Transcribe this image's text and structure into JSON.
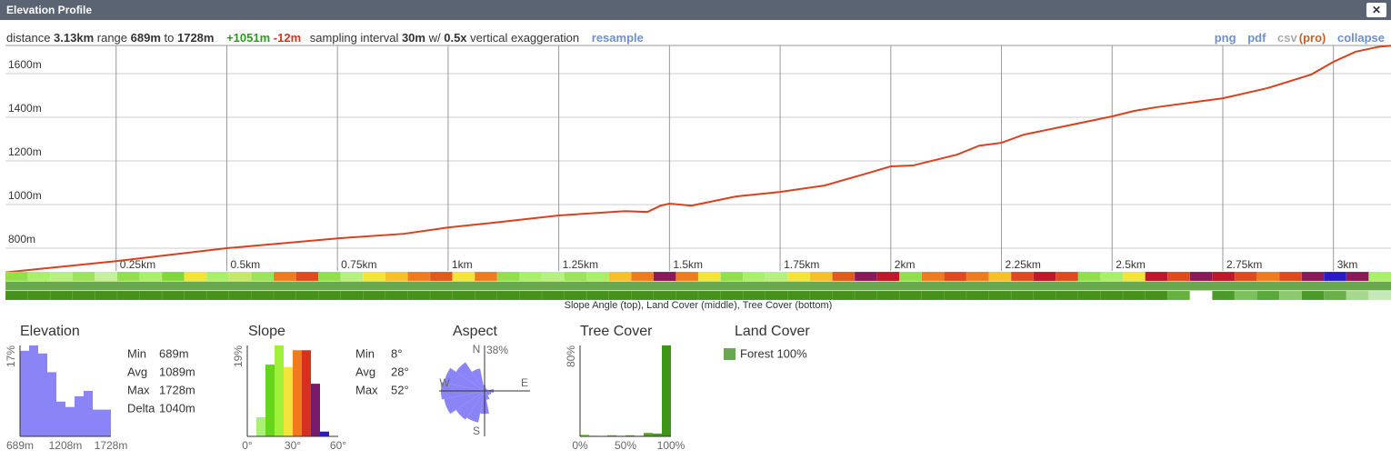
{
  "header": {
    "title": "Elevation Profile",
    "close": "✕"
  },
  "toolbar": {
    "distance_label": "distance",
    "distance": "3.13km",
    "range_label": "range",
    "range_min": "689m",
    "to": "to",
    "range_max": "1728m",
    "gain": "+1051m",
    "loss": "-12m",
    "interval_label": "sampling interval",
    "interval": "30m",
    "with": "w/",
    "exaggeration": "0.5x",
    "exaggeration_label": "vertical exaggeration",
    "resample": "resample",
    "links": [
      "png",
      "pdf",
      "csv",
      "(pro)",
      "collapse"
    ]
  },
  "chart_data": [
    {
      "type": "line",
      "color": "#d9411e",
      "grid": true,
      "x": [
        0,
        0.25,
        0.5,
        0.75,
        0.9,
        1.0,
        1.1,
        1.25,
        1.4,
        1.45,
        1.48,
        1.5,
        1.55,
        1.65,
        1.75,
        1.85,
        1.95,
        2.0,
        2.05,
        2.15,
        2.2,
        2.25,
        2.3,
        2.4,
        2.5,
        2.55,
        2.6,
        2.75,
        2.85,
        2.95,
        3.0,
        3.05,
        3.1,
        3.13
      ],
      "values": [
        689,
        741,
        800,
        845,
        866,
        895,
        916,
        950,
        970,
        966,
        995,
        1004,
        995,
        1037,
        1058,
        1087,
        1145,
        1175,
        1179,
        1229,
        1270,
        1283,
        1320,
        1362,
        1404,
        1429,
        1446,
        1487,
        1533,
        1596,
        1654,
        1700,
        1722,
        1728
      ],
      "xlim": [
        0,
        3.13
      ],
      "ylim": [
        696,
        1729
      ],
      "xticks": [
        {
          "value": 0.25,
          "label": "0.25km"
        },
        {
          "value": 0.5,
          "label": "0.5km"
        },
        {
          "value": 0.75,
          "label": "0.75km"
        },
        {
          "value": 1,
          "label": "1km"
        },
        {
          "value": 1.25,
          "label": "1.25km"
        },
        {
          "value": 1.5,
          "label": "1.5km"
        },
        {
          "value": 1.75,
          "label": "1.75km"
        },
        {
          "value": 2,
          "label": "2km"
        },
        {
          "value": 2.25,
          "label": "2.25km"
        },
        {
          "value": 2.5,
          "label": "2.5km"
        },
        {
          "value": 2.75,
          "label": "2.75km"
        },
        {
          "value": 3,
          "label": "3km"
        }
      ],
      "yticks": [
        {
          "value": 800,
          "label": "800m"
        },
        {
          "value": 1000,
          "label": "1000m"
        },
        {
          "value": 1200,
          "label": "1200m"
        },
        {
          "value": 1400,
          "label": "1400m"
        },
        {
          "value": 1600,
          "label": "1600m"
        }
      ],
      "strips": [
        {
          "colors": [
            "#8fe04a",
            "#a8ef6a",
            "#b5f080",
            "#9be35a",
            "#c6f09a",
            "#8fe04a",
            "#a8ef6a",
            "#7fd83a",
            "#f2e43a",
            "#a8ef6a",
            "#c6e86a",
            "#9be35a",
            "#f07a1e",
            "#e04a1e",
            "#8fe04a",
            "#b5f080",
            "#f2e43a",
            "#f5c02a",
            "#f07a1e",
            "#e05a1e",
            "#f2e43a",
            "#f07a1e",
            "#8fe04a",
            "#a8ef6a",
            "#b5f080",
            "#9be35a",
            "#a8ef6a",
            "#f5c02a",
            "#f07a1e",
            "#8b1a5a",
            "#f07a1e",
            "#f2e43a",
            "#8fe04a",
            "#a8ef6a",
            "#b5f080",
            "#f2e43a",
            "#f5c02a",
            "#e05a1e",
            "#8b1a5a",
            "#c0182a",
            "#8fe04a",
            "#f07a1e",
            "#e04a1e",
            "#f07a1e",
            "#f5c02a",
            "#e04a1e",
            "#c0182a",
            "#e04a1e",
            "#8fe04a",
            "#a8ef6a",
            "#f2e43a",
            "#c0182a",
            "#e04a1e",
            "#8b1a5a",
            "#c0182a",
            "#e04a1e",
            "#f07a1e",
            "#e04a1e",
            "#8b1a5a",
            "#2a1ac8",
            "#8b1a5a",
            "#a8ef6a"
          ]
        },
        {
          "color": "#6aa84f"
        },
        {
          "colors": [
            "#44921c",
            "#44921c",
            "#44921c",
            "#44921c",
            "#44921c",
            "#44921c",
            "#44921c",
            "#44921c",
            "#44921c",
            "#44921c",
            "#44921c",
            "#44921c",
            "#44921c",
            "#44921c",
            "#44921c",
            "#44921c",
            "#44921c",
            "#44921c",
            "#44921c",
            "#44921c",
            "#44921c",
            "#44921c",
            "#44921c",
            "#44921c",
            "#44921c",
            "#44921c",
            "#44921c",
            "#44921c",
            "#44921c",
            "#44921c",
            "#44921c",
            "#44921c",
            "#44921c",
            "#44921c",
            "#44921c",
            "#44921c",
            "#44921c",
            "#44921c",
            "#44921c",
            "#44921c",
            "#44921c",
            "#44921c",
            "#44921c",
            "#44921c",
            "#44921c",
            "#44921c",
            "#44921c",
            "#44921c",
            "#44921c",
            "#44921c",
            "#44921c",
            "#44921c",
            "#66b040",
            "#ffffff",
            "#4a9a2a",
            "#7cc060",
            "#5aa83a",
            "#8cc870",
            "#4a9a2a",
            "#6ab04a",
            "#a6d890",
            "#c6e8b8"
          ]
        }
      ],
      "strip_caption": "Slope Angle (top), Land Cover (middle), Tree Cover (bottom)"
    },
    {
      "type": "histogram",
      "title": "Elevation",
      "color": "#8a84f7",
      "bins": [
        689,
        792.9,
        896.8,
        1000.7,
        1104.6,
        1208.5,
        1312.4,
        1416.3,
        1520.2,
        1624.1,
        1728
      ],
      "values": [
        16,
        17,
        15.5,
        12,
        6.5,
        5.5,
        7.5,
        8.5,
        5,
        5
      ],
      "ylim": [
        0,
        17
      ],
      "yticks": [
        {
          "value": 17,
          "label": "17%"
        }
      ],
      "xticks": [
        {
          "value": 689,
          "label": "689m"
        },
        {
          "value": 1208,
          "label": "1208m"
        },
        {
          "value": 1728,
          "label": "1728m"
        }
      ],
      "stats": [
        {
          "label": "Min",
          "value": "689m"
        },
        {
          "label": "Avg",
          "value": "1089m"
        },
        {
          "label": "Max",
          "value": "1728m"
        },
        {
          "label": "Delta",
          "value": "1040m"
        }
      ]
    },
    {
      "type": "histogram",
      "title": "Slope",
      "bins": [
        0,
        6,
        12,
        18,
        24,
        30,
        36,
        42,
        48,
        54,
        60
      ],
      "values": [
        0,
        4,
        15,
        19,
        14.5,
        18,
        18,
        11,
        1,
        0
      ],
      "colors": [
        "#c6f09a",
        "#a8f078",
        "#66d61a",
        "#a0f03a",
        "#f2e43a",
        "#f07a1e",
        "#d8301e",
        "#7a1a6a",
        "#2a1ac8",
        "#2a1ac8"
      ],
      "ylim": [
        0,
        19
      ],
      "yticks": [
        {
          "value": 19,
          "label": "19%"
        }
      ],
      "xticks": [
        {
          "value": 0,
          "label": "0°"
        },
        {
          "value": 30,
          "label": "30°"
        },
        {
          "value": 60,
          "label": "60°"
        }
      ],
      "stats": [
        {
          "label": "Min",
          "value": "8°"
        },
        {
          "label": "Avg",
          "value": "28°"
        },
        {
          "label": "Max",
          "value": "52°"
        }
      ]
    },
    {
      "type": "rose",
      "title": "Aspect",
      "color": "#8a84f7",
      "categories": [
        "N",
        null,
        null,
        null,
        "E",
        null,
        null,
        null,
        "S",
        null,
        null,
        null,
        "W",
        null,
        null,
        null
      ],
      "values": [
        5,
        3,
        2,
        3,
        8,
        6,
        5,
        8,
        20,
        28,
        30,
        36,
        38,
        36,
        30,
        20
      ],
      "rlim": [
        0,
        38
      ],
      "rticks": [
        {
          "value": 38,
          "label": "38%"
        }
      ]
    },
    {
      "type": "histogram",
      "title": "Tree Cover",
      "bins": [
        0,
        10,
        20,
        30,
        40,
        50,
        60,
        70,
        80,
        90,
        100
      ],
      "values": [
        1.5,
        0.5,
        0,
        1,
        0.5,
        1,
        0.5,
        3,
        2.5,
        80
      ],
      "colors": [
        "#7fd33a",
        "#79cc36",
        "#73c532",
        "#6dbf2e",
        "#67b82a",
        "#61b126",
        "#5baa22",
        "#55a41e",
        "#4f9d1a",
        "#3f9616"
      ],
      "ylim": [
        0,
        80
      ],
      "yticks": [
        {
          "value": 80,
          "label": "80%"
        }
      ],
      "xticks": [
        {
          "value": 0,
          "label": "0%"
        },
        {
          "value": 50,
          "label": "50%"
        },
        {
          "value": 100,
          "label": "100%"
        }
      ]
    }
  ],
  "land_cover": {
    "title": "Land Cover",
    "items": [
      {
        "label": "Forest 100%",
        "color": "#6aa84f"
      }
    ]
  }
}
